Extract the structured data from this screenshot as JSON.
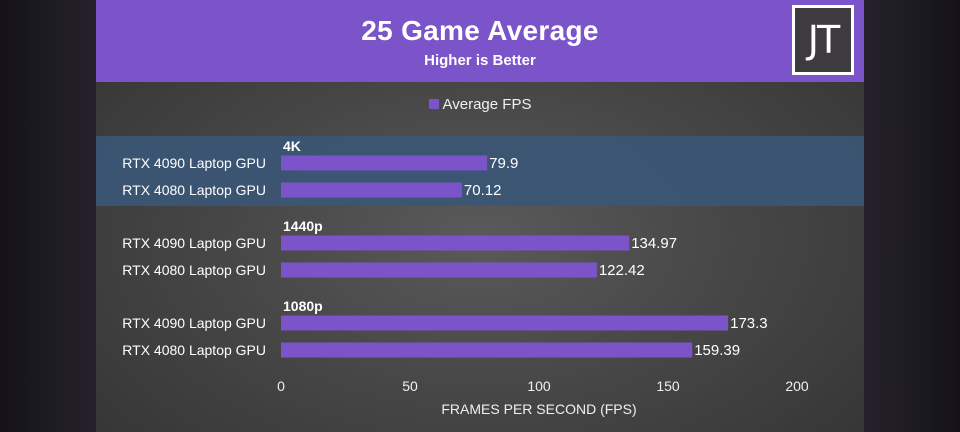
{
  "chart_data": {
    "type": "bar",
    "orientation": "horizontal",
    "title": "25 Game Average",
    "subtitle": "Higher is Better",
    "logo_text": "JT",
    "xlabel": "FRAMES PER SECOND (FPS)",
    "xlim": [
      0,
      200
    ],
    "xticks": [
      "0",
      "50",
      "100",
      "150",
      "200"
    ],
    "legend": {
      "placement": "top",
      "entries": [
        "Average FPS"
      ]
    },
    "series": [
      {
        "name": "Average FPS",
        "color": "#7b54c9"
      }
    ],
    "groups": [
      {
        "label": "4K",
        "highlighted": true,
        "bars": [
          {
            "category": "RTX 4090 Laptop GPU",
            "value": 79.9,
            "label": "79.9"
          },
          {
            "category": "RTX 4080 Laptop GPU",
            "value": 70.12,
            "label": "70.12"
          }
        ]
      },
      {
        "label": "1440p",
        "highlighted": false,
        "bars": [
          {
            "category": "RTX 4090 Laptop GPU",
            "value": 134.97,
            "label": "134.97"
          },
          {
            "category": "RTX 4080 Laptop GPU",
            "value": 122.42,
            "label": "122.42"
          }
        ]
      },
      {
        "label": "1080p",
        "highlighted": false,
        "bars": [
          {
            "category": "RTX 4090 Laptop GPU",
            "value": 173.3,
            "label": "173.3"
          },
          {
            "category": "RTX 4080 Laptop GPU",
            "value": 159.39,
            "label": "159.39"
          }
        ]
      }
    ],
    "colors": {
      "bar": "#7b54c9",
      "header": "#7b54c9",
      "highlight_band": "#3b5675"
    }
  }
}
